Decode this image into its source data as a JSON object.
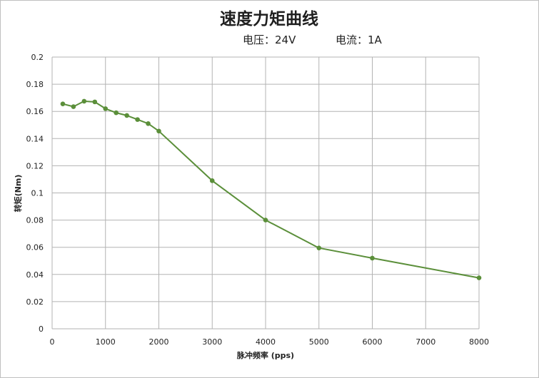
{
  "chart_data": {
    "type": "line",
    "title": "速度力矩曲线",
    "subtitle_left": "电压：24V",
    "subtitle_right": "电流：1A",
    "xlabel": "脉冲频率 (pps)",
    "ylabel": "转矩(Nm)",
    "xlim": [
      0,
      8000
    ],
    "ylim": [
      0,
      0.2
    ],
    "xticks": [
      0,
      1000,
      2000,
      3000,
      4000,
      5000,
      6000,
      7000,
      8000
    ],
    "yticks": [
      0,
      0.02,
      0.04,
      0.06,
      0.08,
      0.1,
      0.12,
      0.14,
      0.16,
      0.18,
      0.2
    ],
    "grid": true,
    "series": [
      {
        "color": "#5b8f3a",
        "x": [
          200,
          400,
          600,
          800,
          1000,
          1200,
          1400,
          1600,
          1800,
          2000,
          3000,
          4000,
          5000,
          6000,
          8000
        ],
        "values": [
          0.1655,
          0.1635,
          0.1675,
          0.167,
          0.162,
          0.159,
          0.157,
          0.154,
          0.151,
          0.1455,
          0.109,
          0.08,
          0.0595,
          0.052,
          0.0375
        ]
      }
    ]
  }
}
